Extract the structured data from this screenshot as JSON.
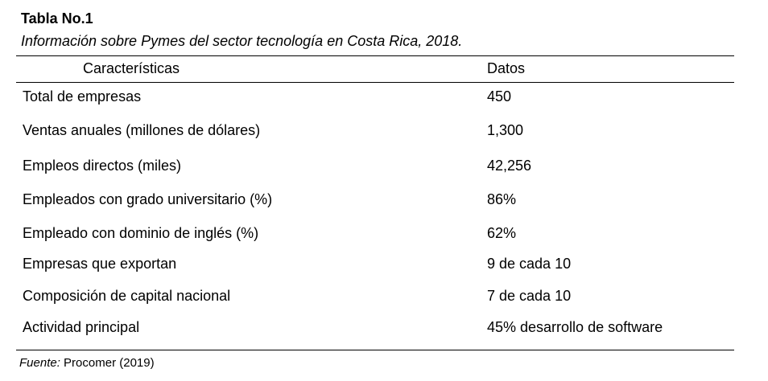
{
  "table": {
    "title": "Tabla No.1",
    "subtitle": "Información sobre Pymes del sector tecnología en Costa Rica, 2018.",
    "headers": [
      "Características",
      "Datos"
    ],
    "rows": [
      {
        "label": "Total de empresas",
        "value": "450"
      },
      {
        "label": "Ventas anuales (millones de dólares)",
        "value": "1,300"
      },
      {
        "label": "Empleos directos (miles)",
        "value": "42,256"
      },
      {
        "label": "Empleados con grado universitario (%)",
        "value": "86%"
      },
      {
        "label": "Empleado con dominio de inglés (%)",
        "value": "62%"
      },
      {
        "label": "Empresas que exportan",
        "value": "9 de cada 10"
      },
      {
        "label": "Composición de capital nacional",
        "value": "7 de cada 10"
      },
      {
        "label": "Actividad principal",
        "value": "45% desarrollo de software"
      }
    ],
    "source_label": "Fuente:",
    "source_text": " Procomer (2019)"
  }
}
